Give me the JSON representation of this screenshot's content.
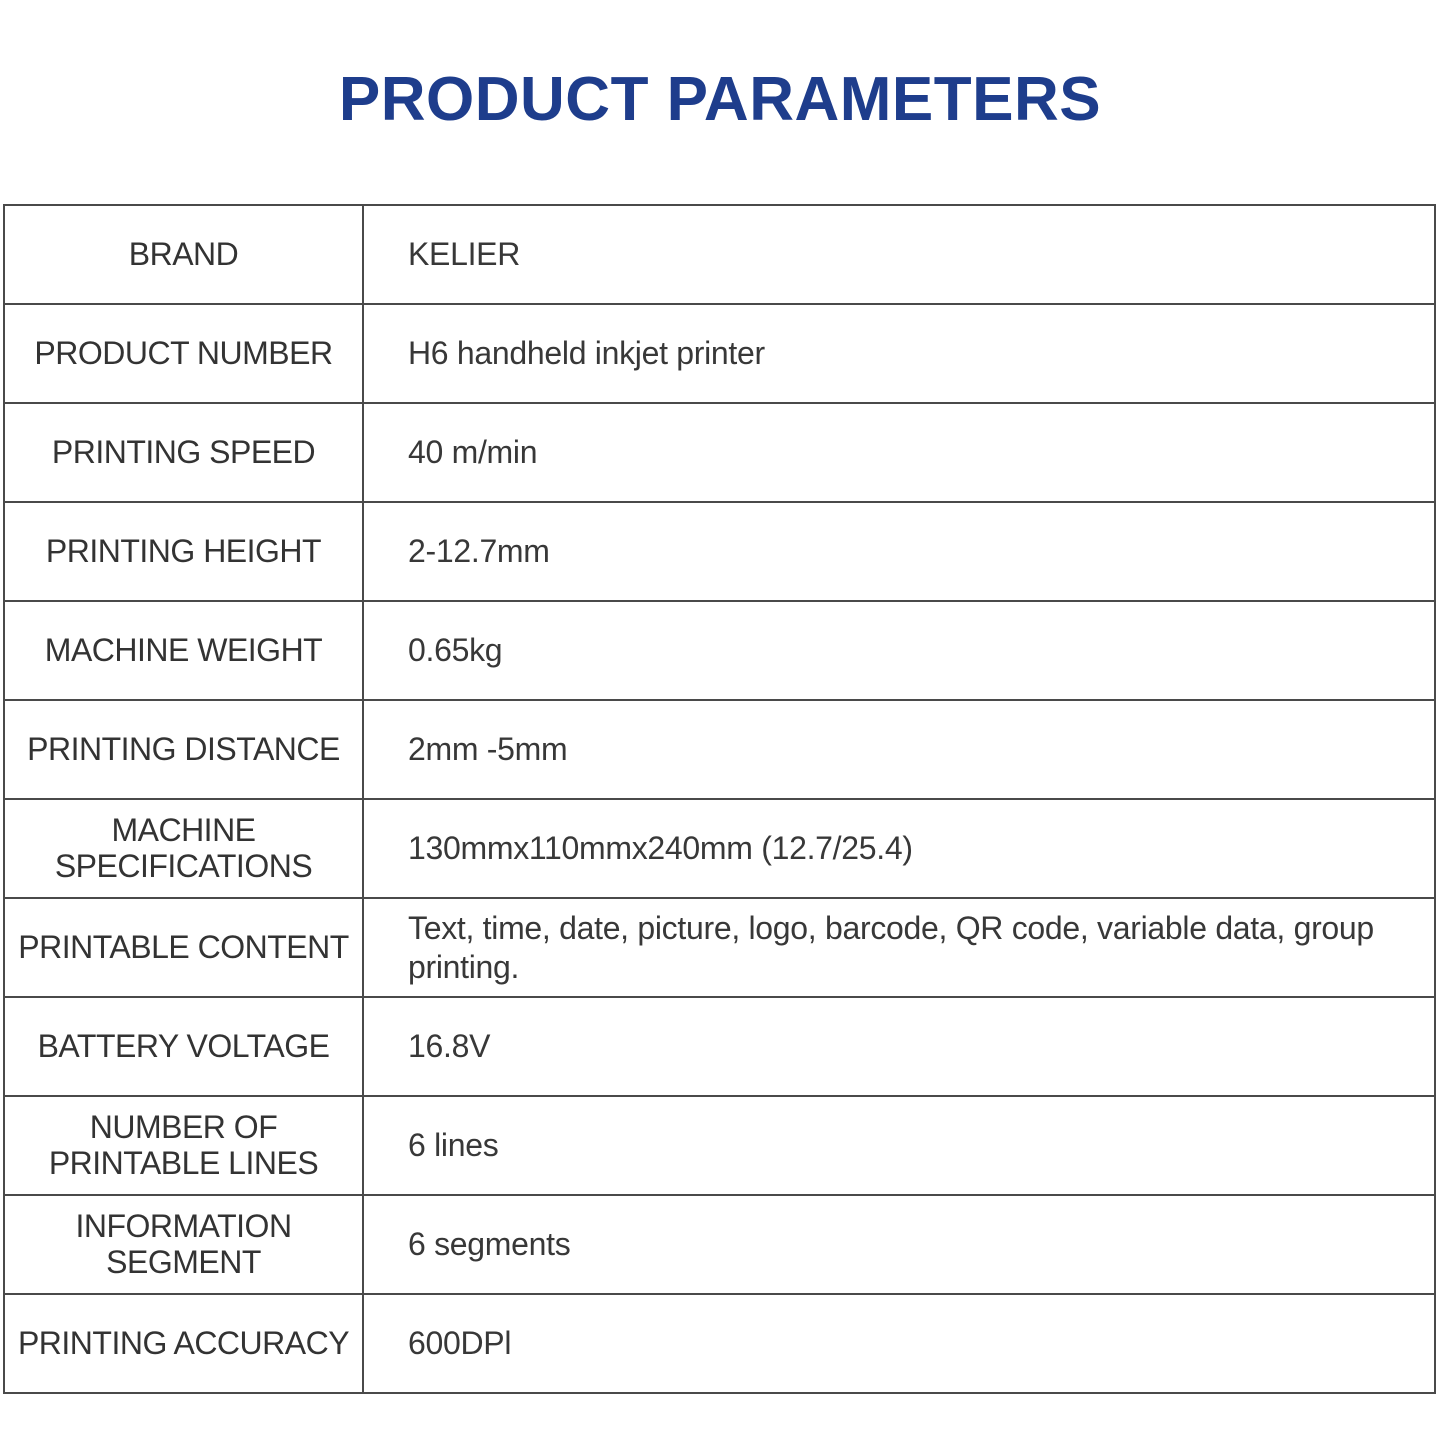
{
  "title": "PRODUCT PARAMETERS",
  "theme": {
    "title_color": "#1e3d8c",
    "text_color": "#333333",
    "border_color": "#4a4a4a",
    "background_color": "#ffffff"
  },
  "table": {
    "rows": [
      {
        "label": "BRAND",
        "value": "KELIER"
      },
      {
        "label": "PRODUCT NUMBER",
        "value": "H6 handheld inkjet printer"
      },
      {
        "label": "PRINTING SPEED",
        "value": "40 m/min"
      },
      {
        "label": "PRINTING HEIGHT",
        "value": "2-12.7mm"
      },
      {
        "label": "MACHINE WEIGHT",
        "value": "0.65kg"
      },
      {
        "label": "PRINTING DISTANCE",
        "value": "2mm -5mm"
      },
      {
        "label": "MACHINE\nSPECIFICATIONS",
        "value": "130mmx110mmx240mm (12.7/25.4)"
      },
      {
        "label": "PRINTABLE CONTENT",
        "value": "Text, time, date, picture, logo, barcode, QR code, variable data, group\nprinting."
      },
      {
        "label": "BATTERY VOLTAGE",
        "value": "16.8V"
      },
      {
        "label": "NUMBER OF\nPRINTABLE LINES",
        "value": "6 lines"
      },
      {
        "label": "INFORMATION\nSEGMENT",
        "value": "6 segments"
      },
      {
        "label": "PRINTING ACCURACY",
        "value": "600DPl"
      }
    ]
  }
}
